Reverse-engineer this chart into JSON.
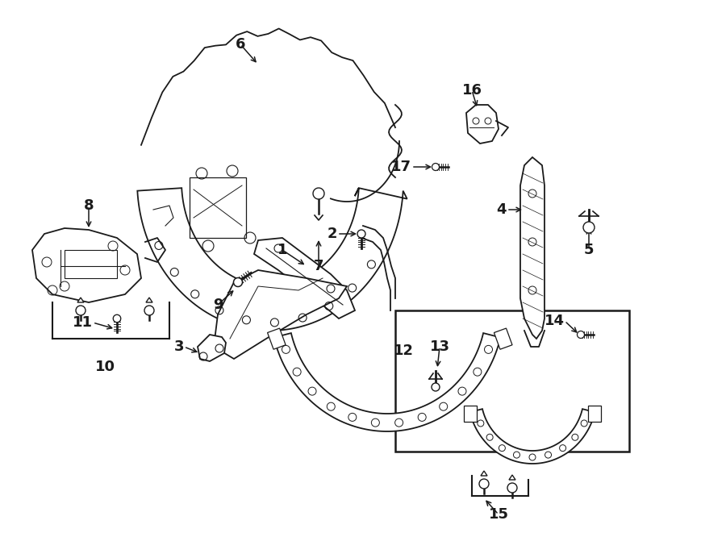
{
  "bg_color": "#ffffff",
  "line_color": "#1a1a1a",
  "fig_width": 9.0,
  "fig_height": 6.61,
  "dpi": 100,
  "label_fontsize": 13,
  "label_fontweight": "bold"
}
